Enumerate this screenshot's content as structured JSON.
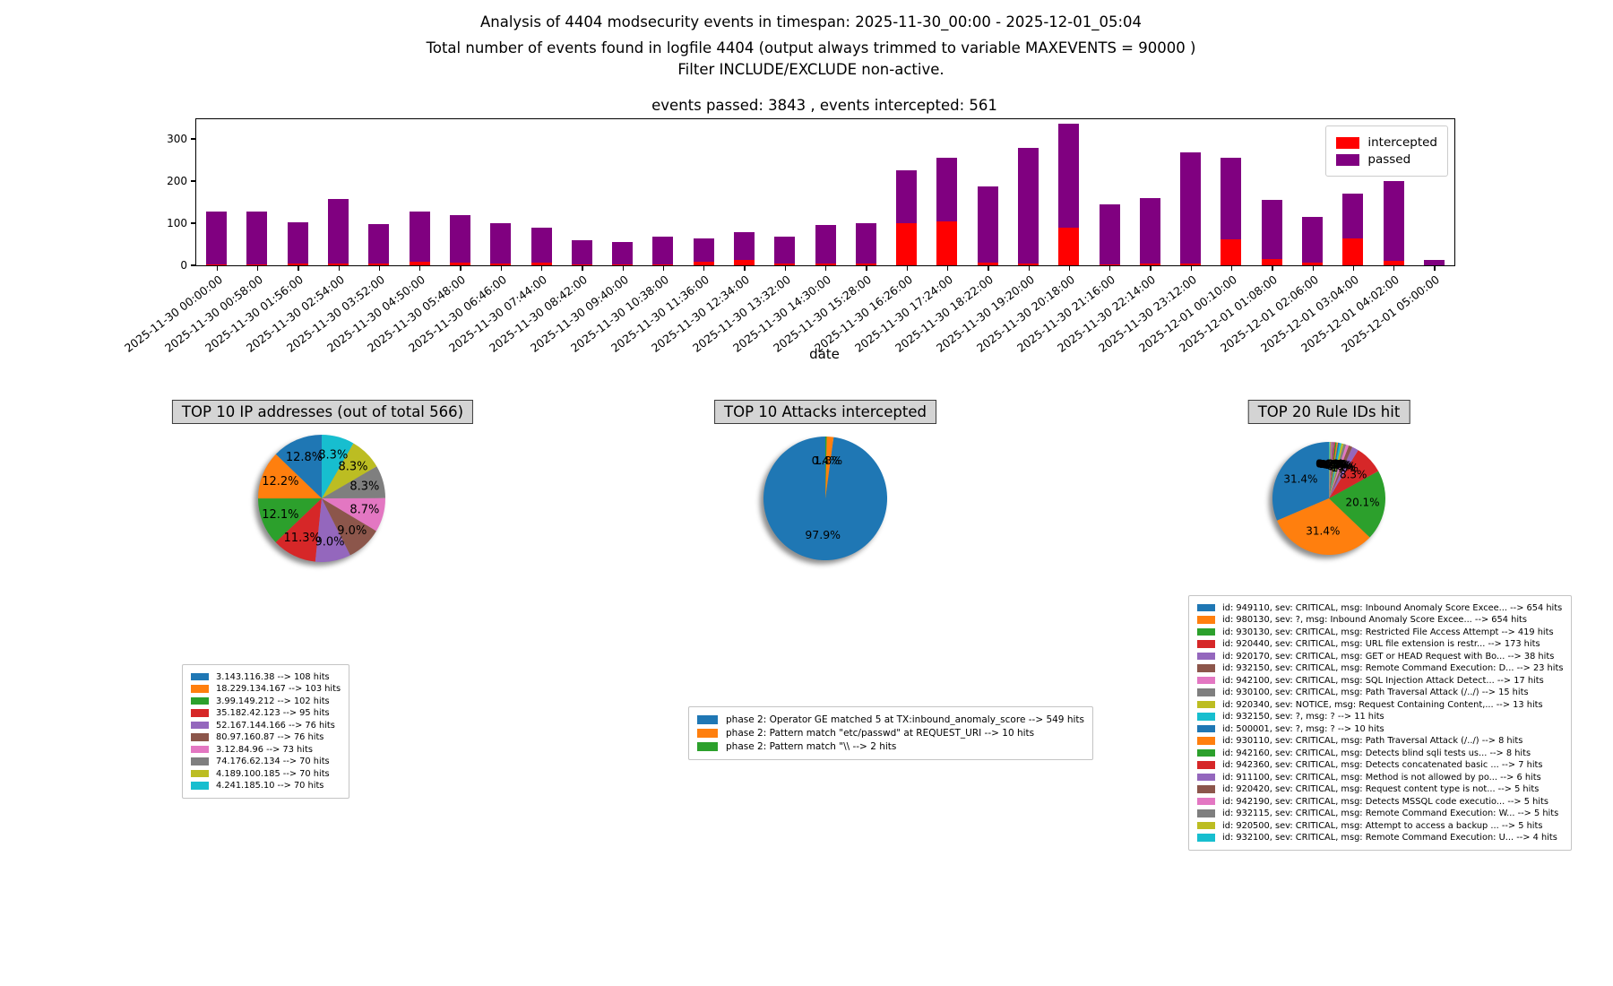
{
  "header": {
    "line1": "Analysis of 4404 modsecurity events in timespan: 2025-11-30_00:00 - 2025-12-01_05:04",
    "line2": "Total number of events found in logfile 4404 (output always trimmed to variable MAXEVENTS = 90000 )",
    "line3": "Filter INCLUDE/EXCLUDE non-active."
  },
  "chart_data": [
    {
      "type": "bar",
      "stacked": true,
      "title": "events passed: 3843 , events intercepted: 561",
      "xlabel": "date",
      "ylabel": "",
      "ylim": [
        0,
        347
      ],
      "yticks": [
        0,
        100,
        200,
        300
      ],
      "grid": false,
      "legend_position": "upper right",
      "legend": [
        {
          "label": "intercepted",
          "color": "#ff0000"
        },
        {
          "label": "passed",
          "color": "#800080"
        }
      ],
      "categories": [
        "2025-11-30 00:00:00",
        "2025-11-30 00:58:00",
        "2025-11-30 01:56:00",
        "2025-11-30 02:54:00",
        "2025-11-30 03:52:00",
        "2025-11-30 04:50:00",
        "2025-11-30 05:48:00",
        "2025-11-30 06:46:00",
        "2025-11-30 07:44:00",
        "2025-11-30 08:42:00",
        "2025-11-30 09:40:00",
        "2025-11-30 10:38:00",
        "2025-11-30 11:36:00",
        "2025-11-30 12:34:00",
        "2025-11-30 13:32:00",
        "2025-11-30 14:30:00",
        "2025-11-30 15:28:00",
        "2025-11-30 16:26:00",
        "2025-11-30 17:24:00",
        "2025-11-30 18:22:00",
        "2025-11-30 19:20:00",
        "2025-11-30 20:18:00",
        "2025-11-30 21:16:00",
        "2025-11-30 22:14:00",
        "2025-11-30 23:12:00",
        "2025-12-01 00:10:00",
        "2025-12-01 01:08:00",
        "2025-12-01 02:06:00",
        "2025-12-01 03:04:00",
        "2025-12-01 04:02:00",
        "2025-12-01 05:00:00"
      ],
      "series": [
        {
          "name": "intercepted",
          "color": "#ff0000",
          "values": [
            3,
            3,
            5,
            4,
            5,
            8,
            6,
            5,
            6,
            3,
            2,
            3,
            8,
            12,
            5,
            4,
            5,
            100,
            105,
            6,
            4,
            90,
            3,
            4,
            4,
            62,
            14,
            7,
            65,
            10,
            0
          ]
        },
        {
          "name": "passed",
          "color": "#800080",
          "values": [
            125,
            124,
            98,
            153,
            93,
            119,
            114,
            96,
            84,
            56,
            54,
            65,
            55,
            66,
            63,
            91,
            95,
            125,
            151,
            182,
            274,
            247,
            141,
            155,
            265,
            194,
            142,
            108,
            106,
            190,
            12
          ]
        }
      ]
    },
    {
      "type": "pie",
      "title": "TOP 10 IP addresses (out of total 566)",
      "start_angle": 90,
      "counterclockwise": true,
      "shadow": true,
      "slices": [
        {
          "label": "3.143.116.38 --> 108 hits",
          "value": 108,
          "pct": "12.8%",
          "color": "#1f77b4"
        },
        {
          "label": "18.229.134.167 --> 103 hits",
          "value": 103,
          "pct": "12.2%",
          "color": "#ff7f0e"
        },
        {
          "label": "3.99.149.212 --> 102 hits",
          "value": 102,
          "pct": "12.1%",
          "color": "#2ca02c"
        },
        {
          "label": "35.182.42.123 --> 95 hits",
          "value": 95,
          "pct": "11.3%",
          "color": "#d62728"
        },
        {
          "label": "52.167.144.166 --> 76 hits",
          "value": 76,
          "pct": "9.0%",
          "color": "#9467bd"
        },
        {
          "label": "80.97.160.87 --> 76 hits",
          "value": 76,
          "pct": "9.0%",
          "color": "#8c564b"
        },
        {
          "label": "3.12.84.96 --> 73 hits",
          "value": 73,
          "pct": "8.7%",
          "color": "#e377c2"
        },
        {
          "label": "74.176.62.134 --> 70 hits",
          "value": 70,
          "pct": "8.3%",
          "color": "#7f7f7f"
        },
        {
          "label": "4.189.100.185 --> 70 hits",
          "value": 70,
          "pct": "8.3%",
          "color": "#bcbd22"
        },
        {
          "label": "4.241.185.10 --> 70 hits",
          "value": 70,
          "pct": "8.3%",
          "color": "#17becf"
        }
      ]
    },
    {
      "type": "pie",
      "title": "TOP 10 Attacks intercepted",
      "start_angle": 90,
      "counterclockwise": true,
      "shadow": true,
      "slices": [
        {
          "label": "phase 2: Operator GE matched 5 at TX:inbound_anomaly_score --> 549 hits",
          "value": 549,
          "pct": "97.9%",
          "color": "#1f77b4"
        },
        {
          "label": "phase 2: Pattern match \"etc/passwd\" at REQUEST_URI --> 10 hits",
          "value": 10,
          "pct": "1.8%",
          "color": "#ff7f0e"
        },
        {
          "label": "phase 2: Pattern match \"\\\\ --> 2 hits",
          "value": 2,
          "pct": "0.4%",
          "color": "#2ca02c"
        }
      ]
    },
    {
      "type": "pie",
      "title": "TOP 20 Rule IDs hit",
      "start_angle": 90,
      "counterclockwise": true,
      "shadow": true,
      "slices": [
        {
          "label": "id: 949110, sev: CRITICAL, msg: Inbound Anomaly Score Excee... --> 654 hits",
          "value": 654,
          "pct": "31.4%",
          "color": "#1f77b4"
        },
        {
          "label": "id: 980130, sev: ?, msg: Inbound Anomaly Score Excee... --> 654 hits",
          "value": 654,
          "pct": "31.4%",
          "color": "#ff7f0e"
        },
        {
          "label": "id: 930130, sev: CRITICAL, msg: Restricted File Access Attempt --> 419 hits",
          "value": 419,
          "pct": "20.1%",
          "color": "#2ca02c"
        },
        {
          "label": "id: 920440, sev: CRITICAL, msg: URL file extension is restr... --> 173 hits",
          "value": 173,
          "pct": "8.3%",
          "color": "#d62728"
        },
        {
          "label": "id: 920170, sev: CRITICAL, msg: GET or HEAD Request with Bo... --> 38 hits",
          "value": 38,
          "pct": "1.8%",
          "color": "#9467bd"
        },
        {
          "label": "id: 932150, sev: CRITICAL, msg: Remote Command Execution: D... --> 23 hits",
          "value": 23,
          "pct": "1.1%",
          "color": "#8c564b"
        },
        {
          "label": "id: 942100, sev: CRITICAL, msg: SQL Injection Attack Detect... --> 17 hits",
          "value": 17,
          "pct": "0.8%",
          "color": "#e377c2"
        },
        {
          "label": "id: 930100, sev: CRITICAL, msg: Path Traversal Attack (/../) --> 15 hits",
          "value": 15,
          "pct": "0.7%",
          "color": "#7f7f7f"
        },
        {
          "label": "id: 920340, sev: NOTICE, msg: Request Containing Content,... --> 13 hits",
          "value": 13,
          "pct": "0.6%",
          "color": "#bcbd22"
        },
        {
          "label": "id: 932150, sev: ?, msg: ? --> 11 hits",
          "value": 11,
          "pct": "0.5%",
          "color": "#17becf"
        },
        {
          "label": "id: 500001, sev: ?, msg: ? --> 10 hits",
          "value": 10,
          "pct": "0.5%",
          "color": "#1f77b4"
        },
        {
          "label": "id: 930110, sev: CRITICAL, msg: Path Traversal Attack (/../) --> 8 hits",
          "value": 8,
          "pct": "0.4%",
          "color": "#ff7f0e"
        },
        {
          "label": "id: 942160, sev: CRITICAL, msg: Detects blind sqli tests us... --> 8 hits",
          "value": 8,
          "pct": "0.4%",
          "color": "#2ca02c"
        },
        {
          "label": "id: 942360, sev: CRITICAL, msg: Detects concatenated basic ... --> 7 hits",
          "value": 7,
          "pct": "0.3%",
          "color": "#d62728"
        },
        {
          "label": "id: 911100, sev: CRITICAL, msg: Method is not allowed by po... --> 6 hits",
          "value": 6,
          "pct": "0.3%",
          "color": "#9467bd"
        },
        {
          "label": "id: 920420, sev: CRITICAL, msg: Request content type is not... --> 5 hits",
          "value": 5,
          "pct": "0.2%",
          "color": "#8c564b"
        },
        {
          "label": "id: 942190, sev: CRITICAL, msg: Detects MSSQL code executio... --> 5 hits",
          "value": 5,
          "pct": "0.2%",
          "color": "#e377c2"
        },
        {
          "label": "id: 932115, sev: CRITICAL, msg: Remote Command Execution: W... --> 5 hits",
          "value": 5,
          "pct": "0.2%",
          "color": "#7f7f7f"
        },
        {
          "label": "id: 920500, sev: CRITICAL, msg: Attempt to access a backup ... --> 5 hits",
          "value": 5,
          "pct": "0.2%",
          "color": "#bcbd22"
        },
        {
          "label": "id: 932100, sev: CRITICAL, msg: Remote Command Execution: U... --> 4 hits",
          "value": 4,
          "pct": "0.2%",
          "color": "#17becf"
        }
      ]
    }
  ]
}
